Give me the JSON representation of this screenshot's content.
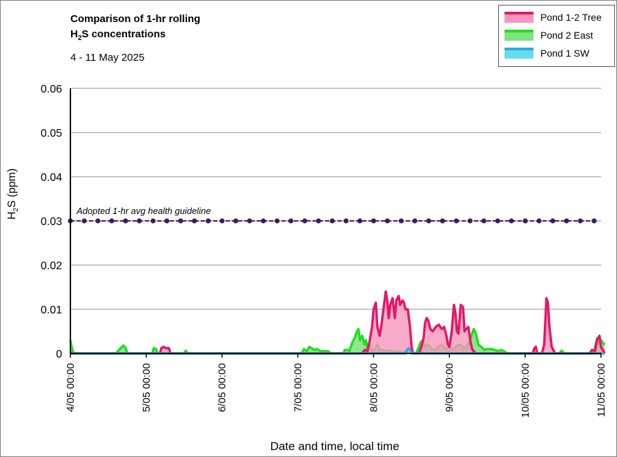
{
  "chart_data": {
    "type": "area",
    "title_line1": "Comparison of 1-hr rolling",
    "title_line2_prefix": "H",
    "title_line2_sub": "2",
    "title_line2_suffix": "S concentrations",
    "subtitle": "4 - 11 May 2025",
    "ylabel_prefix": "H",
    "ylabel_sub": "2",
    "ylabel_suffix": "S (ppm)",
    "xlabel": "Date and time, local time",
    "ylim": [
      0,
      0.06
    ],
    "xlim": [
      0,
      7.05
    ],
    "y_ticks": [
      {
        "value": 0,
        "label": "0"
      },
      {
        "value": 0.01,
        "label": "0.01"
      },
      {
        "value": 0.02,
        "label": "0.02"
      },
      {
        "value": 0.03,
        "label": "0.03"
      },
      {
        "value": 0.04,
        "label": "0.04"
      },
      {
        "value": 0.05,
        "label": "0.05"
      },
      {
        "value": 0.06,
        "label": "0.06"
      }
    ],
    "x_ticks": [
      {
        "value": 0,
        "label": "4/05 00:00"
      },
      {
        "value": 1,
        "label": "5/05 00:00"
      },
      {
        "value": 2,
        "label": "6/05 00:00"
      },
      {
        "value": 3,
        "label": "7/05 00:00"
      },
      {
        "value": 4,
        "label": "8/05 00:00"
      },
      {
        "value": 5,
        "label": "9/05 00:00"
      },
      {
        "value": 6,
        "label": "10/05 00:00"
      },
      {
        "value": 7,
        "label": "11/05 00:00"
      }
    ],
    "grid": true,
    "legend_position": "top-right",
    "guideline": {
      "label": "Adopted 1-hr avg health guideline",
      "value": 0.03,
      "color": "#3d1a5e"
    },
    "series": [
      {
        "name": "Pond 2 East",
        "line_color": "#22dd22",
        "fill_color": "#7ee27e",
        "x": [
          0,
          0.01,
          0.03,
          0.05,
          0.6,
          0.68,
          0.7,
          0.73,
          0.75,
          1.08,
          1.1,
          1.13,
          1.15,
          1.5,
          1.52,
          1.55,
          3.05,
          3.08,
          3.12,
          3.15,
          3.18,
          3.22,
          3.25,
          3.3,
          3.4,
          3.43,
          3.6,
          3.62,
          3.65,
          3.68,
          3.72,
          3.75,
          3.78,
          3.8,
          3.82,
          3.85,
          3.88,
          3.9,
          3.92,
          3.95,
          3.98,
          4.02,
          4.05,
          4.08,
          4.1,
          4.13,
          4.16,
          4.2,
          4.23,
          4.28,
          4.32,
          4.38,
          4.42,
          4.46,
          4.5,
          4.53,
          4.56,
          4.6,
          4.62,
          4.65,
          4.68,
          4.72,
          4.78,
          4.82,
          4.85,
          4.9,
          4.95,
          5.0,
          5.05,
          5.1,
          5.14,
          5.18,
          5.22,
          5.26,
          5.3,
          5.32,
          5.35,
          5.38,
          5.42,
          5.46,
          5.5,
          5.55,
          5.6,
          5.65,
          5.68,
          5.72,
          5.76,
          6.45,
          6.48,
          6.52,
          6.9,
          6.95,
          6.98,
          7.0,
          7.02,
          7.05
        ],
        "values": [
          0.003,
          0.002,
          0.0005,
          0,
          0,
          0.0015,
          0.0018,
          0.0012,
          0,
          0,
          0.0012,
          0.001,
          0,
          0,
          0.0006,
          0,
          0,
          0.001,
          0.0005,
          0.0015,
          0.0012,
          0.0008,
          0.001,
          0.0005,
          0.0005,
          0,
          0,
          0.0008,
          0.0008,
          0.0006,
          0.0025,
          0.0035,
          0.005,
          0.0055,
          0.003,
          0.004,
          0.002,
          0.003,
          0.001,
          0.002,
          0.0005,
          0.001,
          0.002,
          0.001,
          0.0005,
          0.0008,
          0.0005,
          0.0007,
          0.0005,
          0.0003,
          0.0005,
          0.0002,
          0.0005,
          0.0004,
          0.0003,
          0,
          0,
          0.0015,
          0.0025,
          0.003,
          0.0015,
          0.002,
          0.0008,
          0.0008,
          0.0015,
          0.002,
          0.001,
          0.0015,
          0.0008,
          0.0018,
          0.002,
          0.0015,
          0.0012,
          0.0025,
          0.0045,
          0.0055,
          0.0045,
          0.002,
          0.0015,
          0.0008,
          0.001,
          0.001,
          0.0008,
          0.0005,
          0.0008,
          0.0005,
          0,
          0,
          0.0006,
          0,
          0,
          0.0035,
          0.002,
          0.003,
          0.0025,
          0.002
        ]
      },
      {
        "name": "Pond 1-2 Tree",
        "line_color": "#e0196a",
        "fill_color": "#f797bd",
        "x": [
          0,
          1.18,
          1.2,
          1.23,
          1.26,
          1.3,
          1.32,
          3.6,
          3.85,
          3.88,
          3.92,
          3.95,
          3.98,
          4.0,
          4.03,
          4.05,
          4.08,
          4.1,
          4.13,
          4.16,
          4.18,
          4.2,
          4.22,
          4.25,
          4.28,
          4.3,
          4.33,
          4.35,
          4.38,
          4.4,
          4.42,
          4.45,
          4.48,
          4.5,
          4.52,
          4.55,
          4.6,
          4.63,
          4.66,
          4.68,
          4.7,
          4.72,
          4.75,
          4.78,
          4.82,
          4.86,
          4.9,
          4.93,
          4.96,
          4.98,
          5.0,
          5.03,
          5.06,
          5.08,
          5.1,
          5.12,
          5.15,
          5.18,
          5.2,
          5.22,
          5.25,
          5.28,
          5.3,
          5.32,
          5.35,
          6.1,
          6.12,
          6.14,
          6.16,
          6.22,
          6.25,
          6.28,
          6.3,
          6.32,
          6.35,
          6.38,
          6.4,
          6.85,
          6.88,
          6.92,
          6.95,
          6.98,
          7.0,
          7.05
        ],
        "values": [
          0,
          0,
          0.0012,
          0.0015,
          0.0012,
          0.0012,
          0,
          0,
          0,
          0.0008,
          0.0005,
          0.003,
          0.006,
          0.01,
          0.0115,
          0.006,
          0.004,
          0.006,
          0.01,
          0.014,
          0.012,
          0.008,
          0.011,
          0.0125,
          0.008,
          0.012,
          0.013,
          0.011,
          0.012,
          0.0115,
          0.01,
          0.01,
          0.006,
          0.0015,
          0,
          0,
          0,
          0.0015,
          0.0035,
          0.007,
          0.008,
          0.0075,
          0.0055,
          0.005,
          0.006,
          0.0065,
          0.0055,
          0.006,
          0.004,
          0.002,
          0.0015,
          0.005,
          0.011,
          0.009,
          0.005,
          0.0045,
          0.011,
          0.0105,
          0.005,
          0.0055,
          0.006,
          0.0025,
          0.001,
          0.0005,
          0,
          0,
          0.0012,
          0.0015,
          0,
          0,
          0.002,
          0.0125,
          0.0115,
          0.006,
          0.0015,
          0.0005,
          0,
          0,
          0.0008,
          0.0005,
          0.003,
          0.004,
          0.0015,
          0
        ]
      },
      {
        "name": "Pond 1 SW",
        "line_color": "#33aadd",
        "fill_color": "#66ddee",
        "x": [
          0,
          4.42,
          4.44,
          4.46,
          4.48,
          4.5,
          7.05
        ],
        "values": [
          0,
          0,
          0.0008,
          0.0012,
          0.0008,
          0,
          0
        ]
      }
    ],
    "legend_order": [
      "Pond 1-2 Tree",
      "Pond 2 East",
      "Pond 1 SW"
    ]
  }
}
